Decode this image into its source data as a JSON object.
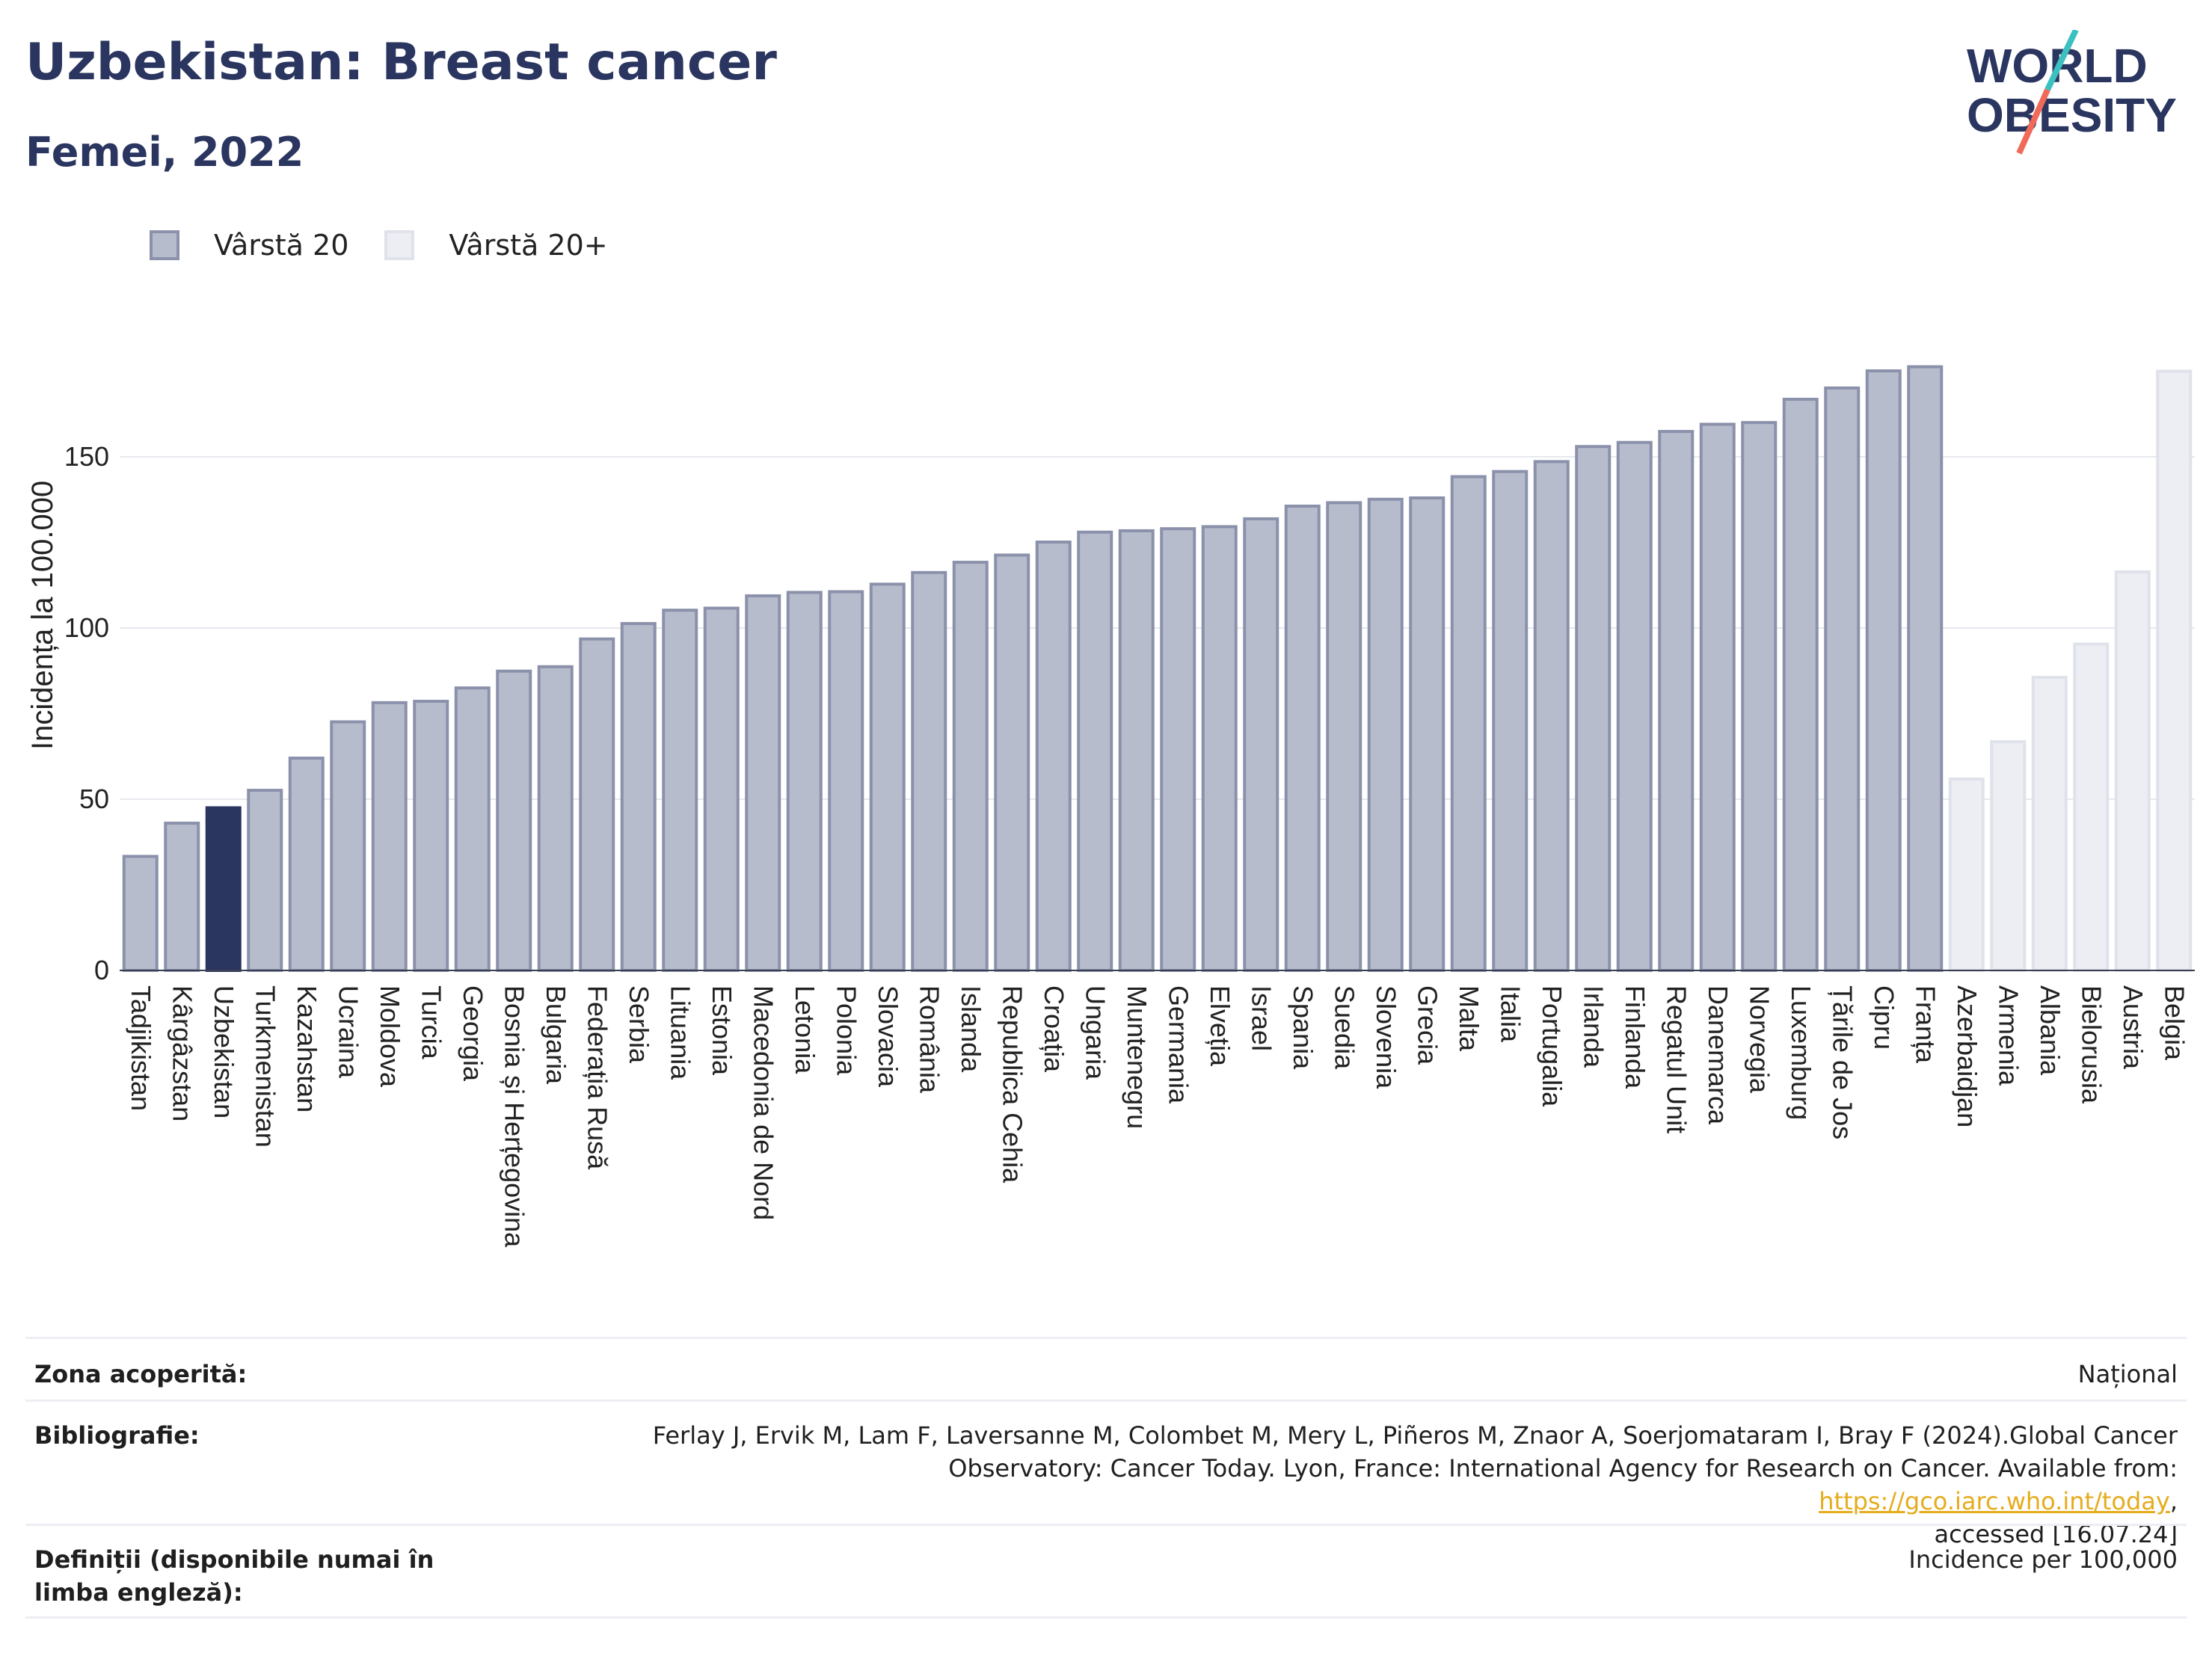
{
  "header": {
    "title": "Uzbekistan: Breast cancer",
    "subtitle": "Femei, 2022"
  },
  "logo": {
    "line1": "WORLD",
    "line2": "OBESITY",
    "colors": {
      "text": "#2a3560",
      "slash_top": "#3cc0c0",
      "slash_bottom": "#f06a5a"
    }
  },
  "legend": {
    "items": [
      {
        "label": "Vârstă 20"
      },
      {
        "label": "Vârstă 20+"
      }
    ]
  },
  "chart_data": {
    "type": "bar",
    "title": "Uzbekistan: Breast cancer",
    "subtitle": "Femei, 2022",
    "ylabel": "Incidența la 100.000",
    "ylim": [
      0,
      190
    ],
    "yticks": [
      0,
      50,
      100,
      150
    ],
    "grid": true,
    "legend_position": "top-left",
    "highlight": "Uzbekistan",
    "colors": {
      "series_a": "#b7bccd",
      "series_a_border": "#8b91aa",
      "series_b": "#eceef3",
      "series_b_border": "#dfe2ea",
      "highlight": "#2a3560"
    },
    "series": [
      {
        "name": "Vârstă 20",
        "categories": [
          "Tadjikistan",
          "Kârgâzstan",
          "Uzbekistan",
          "Turkmenistan",
          "Kazahstan",
          "Ucraina",
          "Moldova",
          "Turcia",
          "Georgia",
          "Bosnia și Herțegovina",
          "Bulgaria",
          "Federația Rusă",
          "Serbia",
          "Lituania",
          "Estonia",
          "Macedonia de Nord",
          "Letonia",
          "Polonia",
          "Slovacia",
          "România",
          "Islanda",
          "Republica Cehia",
          "Croația",
          "Ungaria",
          "Muntenegru",
          "Germania",
          "Elveția",
          "Israel",
          "Spania",
          "Suedia",
          "Slovenia",
          "Grecia",
          "Malta",
          "Italia",
          "Portugalia",
          "Irlanda",
          "Finlanda",
          "Regatul Unit",
          "Danemarca",
          "Norvegia",
          "Luxemburg",
          "Țările de Jos",
          "Cipru",
          "Franța"
        ],
        "values": [
          33.3,
          43.0,
          47.5,
          52.6,
          62.0,
          72.6,
          78.2,
          78.6,
          82.5,
          87.4,
          88.7,
          96.8,
          101.3,
          105.2,
          105.8,
          109.4,
          110.4,
          110.6,
          112.8,
          116.2,
          119.2,
          121.3,
          125.1,
          128.0,
          128.4,
          129.0,
          129.6,
          131.9,
          135.6,
          136.6,
          137.6,
          138.0,
          144.2,
          145.7,
          148.6,
          153.0,
          154.2,
          157.4,
          159.5,
          160.0,
          166.8,
          170.1,
          175.1,
          176.3
        ]
      },
      {
        "name": "Vârstă 20+",
        "categories": [
          "Azerbaidjan",
          "Armenia",
          "Albania",
          "Bielorusia",
          "Austria",
          "Belgia"
        ],
        "values": [
          55.9,
          66.8,
          85.6,
          95.3,
          116.4,
          175.0
        ]
      }
    ]
  },
  "footer": {
    "coverage": {
      "label": "Zona acoperită:",
      "value": "Național"
    },
    "bibliography": {
      "label": "Bibliografie:",
      "line1": "Ferlay J, Ervik M, Lam F, Laversanne M, Colombet M, Mery L, Piñeros M, Znaor A, Soerjomataram I, Bray F (2024).Global Cancer",
      "line2_prefix": "Observatory: Cancer Today. Lyon, France: International Agency for Research on Cancer. Available from: ",
      "link": "https://gco.iarc.who.int/today",
      "line2_suffix": ",",
      "line3": "accessed [16.07.24]"
    },
    "definitions": {
      "label": "Definiții (disponibile numai în limba engleză):",
      "value": "Incidence per 100,000"
    }
  }
}
